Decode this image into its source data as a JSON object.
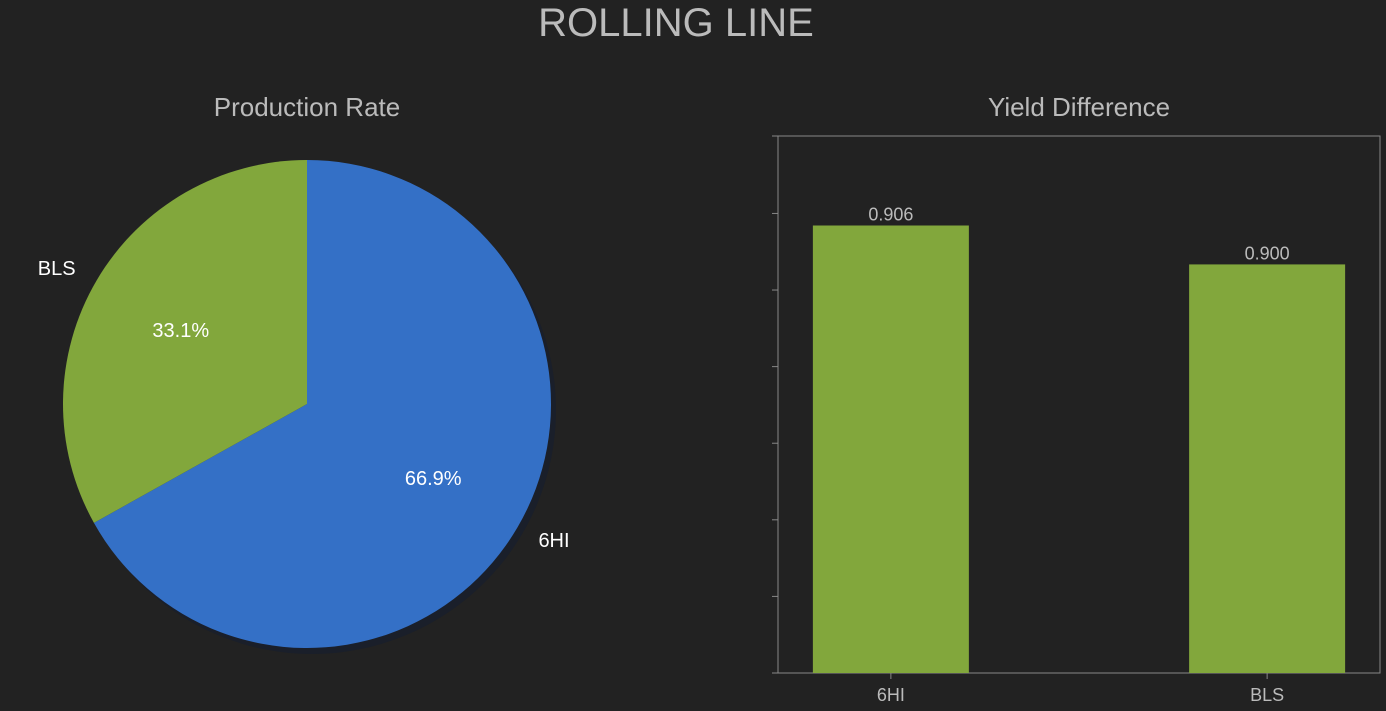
{
  "suptitle": "ROLLING LINE",
  "chart_data": [
    {
      "type": "pie",
      "title": "Production Rate",
      "slices": [
        {
          "label": "6HI",
          "value": 66.9,
          "pct_label": "66.9%",
          "color": "#3470C6"
        },
        {
          "label": "BLS",
          "value": 33.1,
          "pct_label": "33.1%",
          "color": "#82A73C"
        }
      ],
      "start_angle_deg": 90,
      "direction": "clockwise",
      "shadow": true
    },
    {
      "type": "bar",
      "title": "Yield Difference",
      "categories": [
        "6HI",
        "BLS"
      ],
      "values": [
        0.906,
        0.9
      ],
      "value_labels": [
        "0.906",
        "0.900"
      ],
      "color": "#82A73C",
      "ylim": [
        0.837,
        0.9198
      ],
      "ytick_values": [
        0.837,
        0.84881,
        0.86062,
        0.87243,
        0.88424,
        0.89605,
        0.90786,
        0.9198
      ],
      "ytick_labels_visible": false,
      "grid": false
    }
  ],
  "colors": {
    "background": "#222222",
    "text_muted": "#BBBBBB",
    "text_bright": "#FFFFFF",
    "axis": "#888888"
  }
}
